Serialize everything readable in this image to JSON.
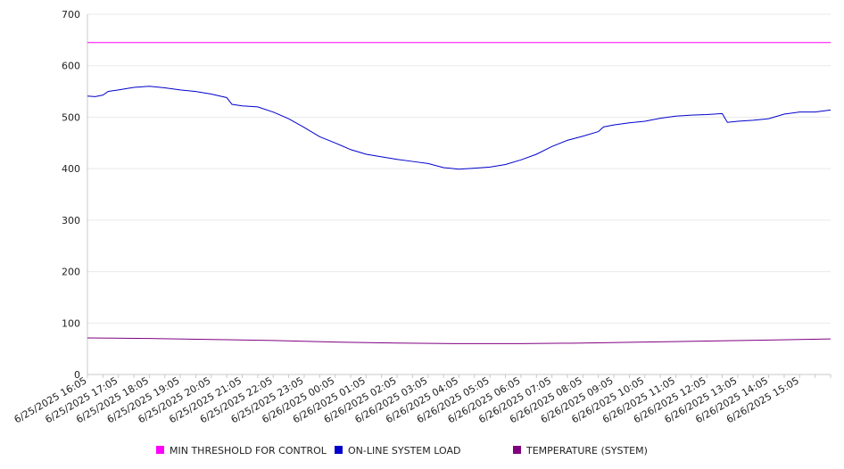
{
  "chart_data": {
    "type": "line",
    "ylim": [
      0,
      700
    ],
    "y_ticks": [
      "0",
      "100",
      "200",
      "300",
      "400",
      "500",
      "600",
      "700"
    ],
    "x_tick_labels": [
      "6/25/2025 16:05",
      "6/25/2025 17:05",
      "6/25/2025 18:05",
      "6/25/2025 19:05",
      "6/25/2025 20:05",
      "6/25/2025 21:05",
      "6/25/2025 22:05",
      "6/25/2025 23:05",
      "6/26/2025 00:05",
      "6/26/2025 01:05",
      "6/26/2025 02:05",
      "6/26/2025 03:05",
      "6/26/2025 04:05",
      "6/26/2025 05:05",
      "6/26/2025 06:05",
      "6/26/2025 07:05",
      "6/26/2025 08:05",
      "6/26/2025 09:05",
      "6/26/2025 10:05",
      "6/26/2025 11:05",
      "6/26/2025 12:05",
      "6/26/2025 13:05",
      "6/26/2025 14:05",
      "6/26/2025 15:05"
    ],
    "x_range": [
      "6/25/2025 16:05",
      "6/26/2025 16:05"
    ],
    "grid": "horizontal",
    "legend_position": "bottom",
    "series": [
      {
        "name": "MIN THRESHOLD FOR CONTROL",
        "color": "#ff00ff",
        "points": [
          [
            "6/25/2025 16:05",
            645
          ],
          [
            "6/26/2025 16:05",
            645
          ]
        ]
      },
      {
        "name": "ON-LINE SYSTEM LOAD",
        "color": "#0000cc",
        "points": [
          [
            "6/25/2025 16:05",
            541
          ],
          [
            "6/25/2025 16:20",
            540
          ],
          [
            "6/25/2025 16:35",
            543
          ],
          [
            "6/25/2025 16:45",
            550
          ],
          [
            "6/25/2025 17:05",
            553
          ],
          [
            "6/25/2025 17:35",
            558
          ],
          [
            "6/25/2025 18:05",
            560
          ],
          [
            "6/25/2025 18:35",
            557
          ],
          [
            "6/25/2025 19:05",
            553
          ],
          [
            "6/25/2025 19:35",
            550
          ],
          [
            "6/25/2025 20:05",
            545
          ],
          [
            "6/25/2025 20:35",
            538
          ],
          [
            "6/25/2025 20:45",
            525
          ],
          [
            "6/25/2025 21:05",
            522
          ],
          [
            "6/25/2025 21:35",
            520
          ],
          [
            "6/25/2025 22:05",
            510
          ],
          [
            "6/25/2025 22:35",
            497
          ],
          [
            "6/25/2025 23:05",
            480
          ],
          [
            "6/25/2025 23:35",
            462
          ],
          [
            "6/26/2025 00:05",
            450
          ],
          [
            "6/26/2025 00:35",
            437
          ],
          [
            "6/26/2025 01:05",
            428
          ],
          [
            "6/26/2025 01:35",
            423
          ],
          [
            "6/26/2025 02:05",
            418
          ],
          [
            "6/26/2025 02:35",
            414
          ],
          [
            "6/26/2025 03:05",
            410
          ],
          [
            "6/26/2025 03:35",
            402
          ],
          [
            "6/26/2025 04:05",
            399
          ],
          [
            "6/26/2025 04:35",
            401
          ],
          [
            "6/26/2025 05:05",
            403
          ],
          [
            "6/26/2025 05:35",
            408
          ],
          [
            "6/26/2025 06:05",
            417
          ],
          [
            "6/26/2025 06:35",
            428
          ],
          [
            "6/26/2025 07:05",
            443
          ],
          [
            "6/26/2025 07:35",
            455
          ],
          [
            "6/26/2025 08:05",
            463
          ],
          [
            "6/26/2025 08:35",
            472
          ],
          [
            "6/26/2025 08:45",
            481
          ],
          [
            "6/26/2025 09:05",
            485
          ],
          [
            "6/26/2025 09:35",
            489
          ],
          [
            "6/26/2025 10:05",
            492
          ],
          [
            "6/26/2025 10:35",
            498
          ],
          [
            "6/26/2025 11:05",
            502
          ],
          [
            "6/26/2025 11:35",
            504
          ],
          [
            "6/26/2025 12:05",
            505
          ],
          [
            "6/26/2025 12:35",
            507
          ],
          [
            "6/26/2025 12:45",
            490
          ],
          [
            "6/26/2025 13:05",
            492
          ],
          [
            "6/26/2025 13:35",
            494
          ],
          [
            "6/26/2025 14:05",
            497
          ],
          [
            "6/26/2025 14:35",
            506
          ],
          [
            "6/26/2025 15:05",
            510
          ],
          [
            "6/26/2025 15:35",
            510
          ],
          [
            "6/26/2025 16:05",
            514
          ]
        ]
      },
      {
        "name": "TEMPERATURE (SYSTEM)",
        "color": "#800080",
        "points": [
          [
            "6/25/2025 16:05",
            71
          ],
          [
            "6/25/2025 18:05",
            70
          ],
          [
            "6/25/2025 20:05",
            68
          ],
          [
            "6/25/2025 22:05",
            66
          ],
          [
            "6/26/2025 00:05",
            63
          ],
          [
            "6/26/2025 02:05",
            61
          ],
          [
            "6/26/2025 04:05",
            60
          ],
          [
            "6/26/2025 06:05",
            60
          ],
          [
            "6/26/2025 08:05",
            61
          ],
          [
            "6/26/2025 10:05",
            63
          ],
          [
            "6/26/2025 12:05",
            65
          ],
          [
            "6/26/2025 14:05",
            67
          ],
          [
            "6/26/2025 16:05",
            69
          ]
        ]
      }
    ]
  }
}
